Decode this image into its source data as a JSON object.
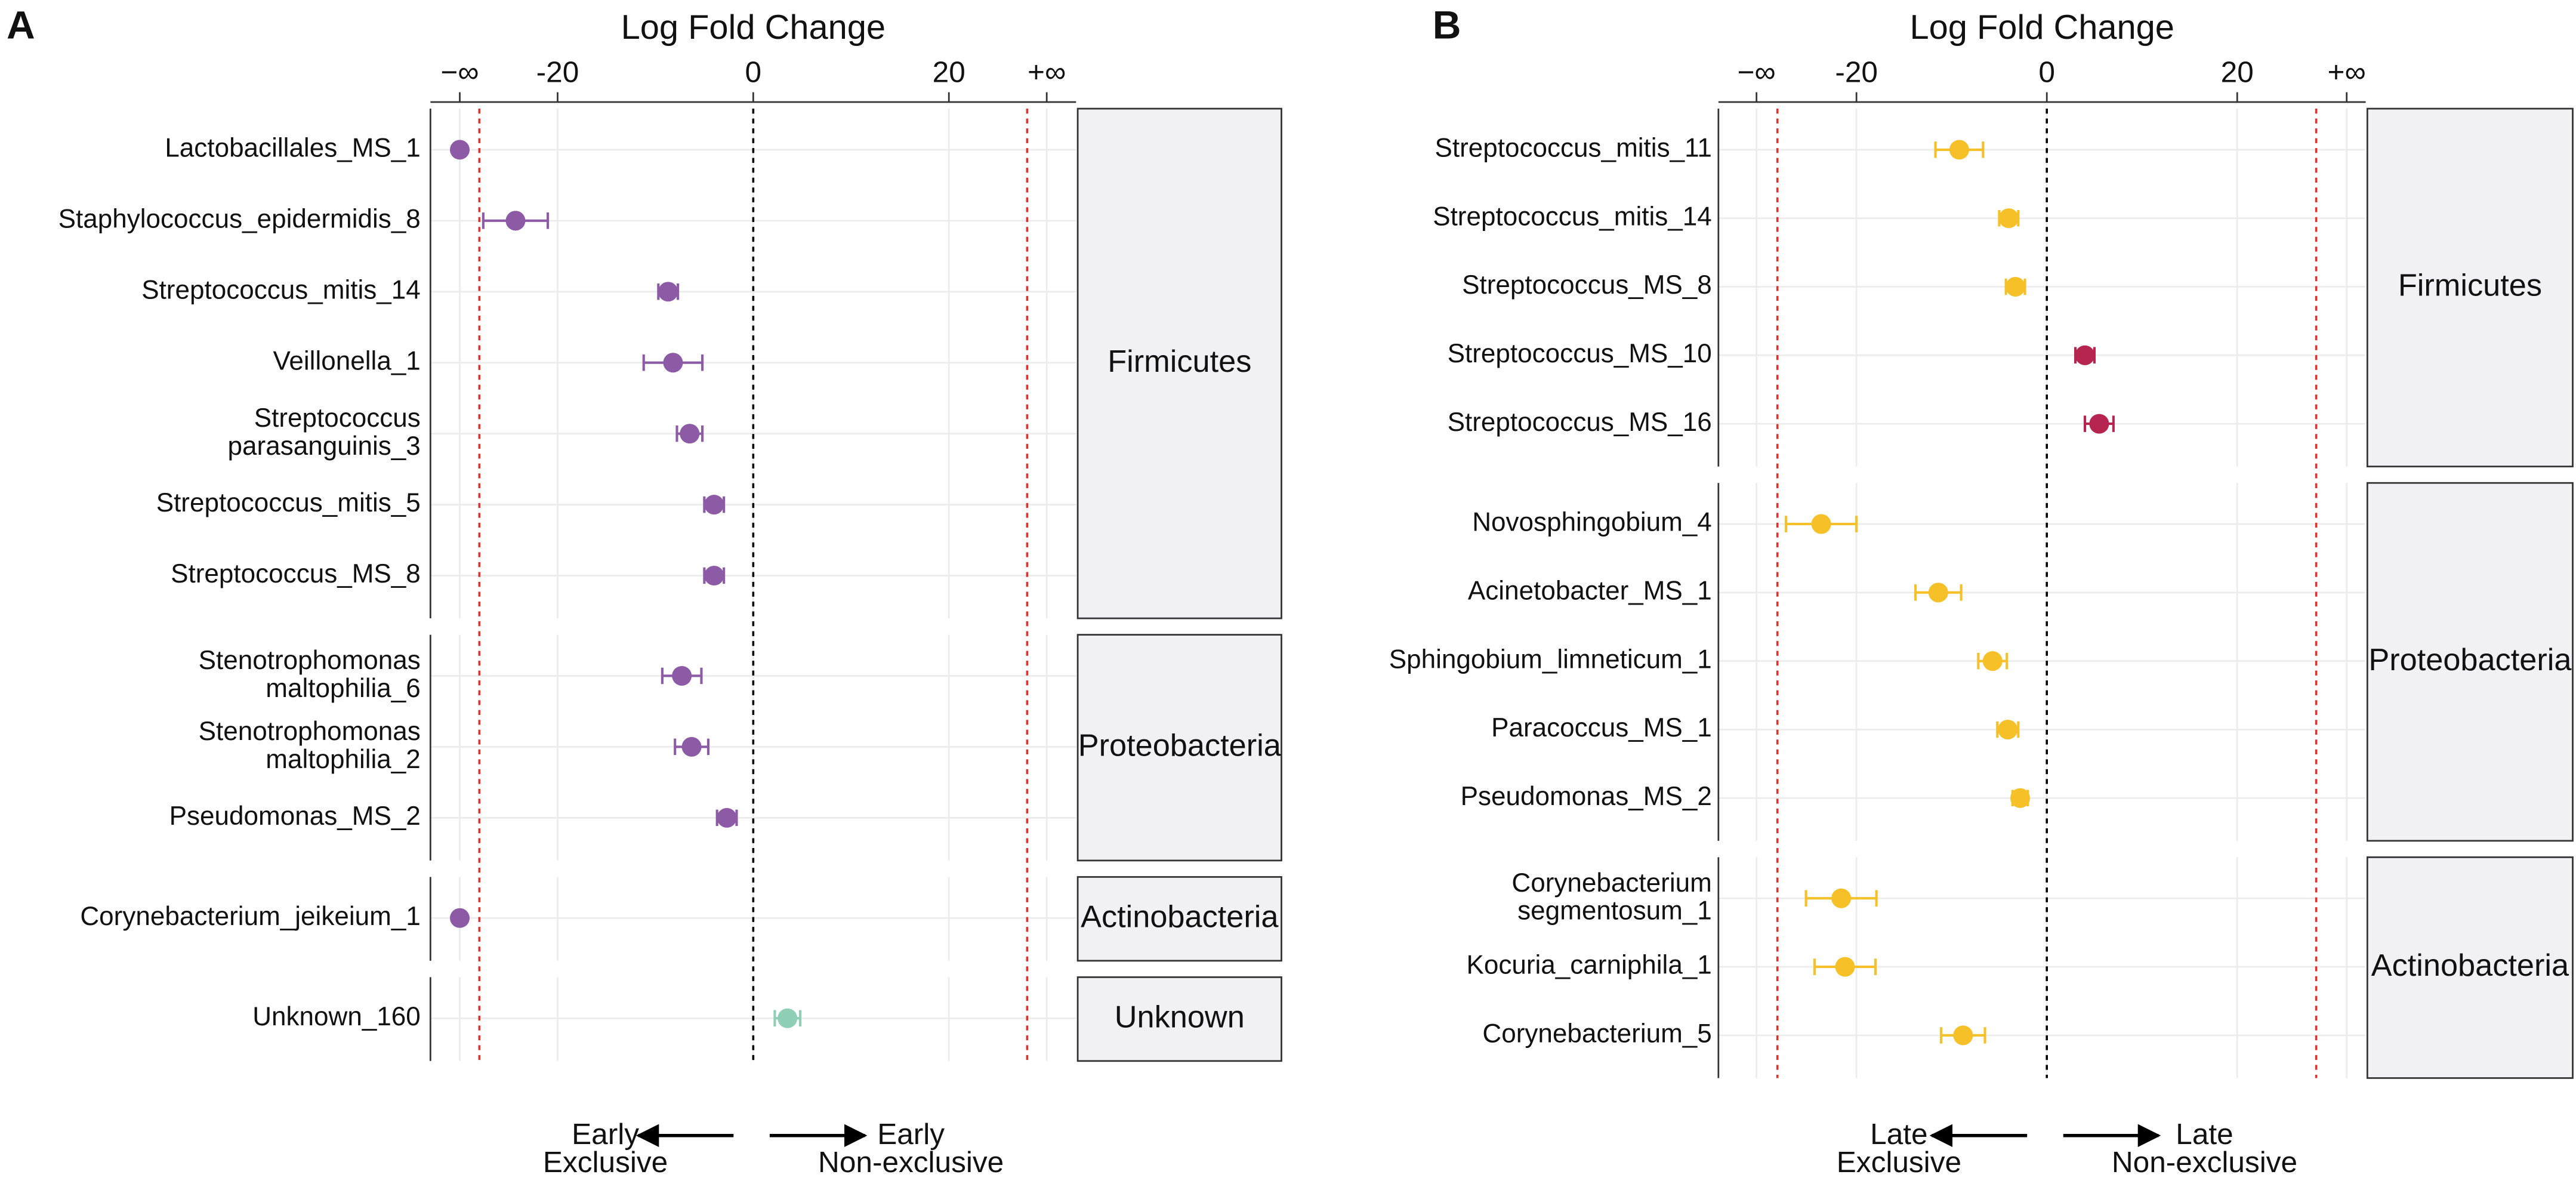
{
  "chart_data": [
    {
      "type": "dotplot",
      "panel_label": "A",
      "x_label": "Log Fold Change",
      "xlim": [
        -33,
        33
      ],
      "xticks": [
        {
          "value": -30,
          "label": "−∞"
        },
        -20,
        0,
        20,
        {
          "value": 30,
          "label": "+∞"
        }
      ],
      "grid": true,
      "ref_lines": [
        {
          "value": -28,
          "color": "#e0312f"
        },
        {
          "value": 0,
          "color": "#000000"
        },
        {
          "value": 28,
          "color": "#e0312f"
        }
      ],
      "groups": [
        {
          "name": "Firmicutes",
          "categories": [
            "Lactobacillales_MS_1",
            "Staphylococcus_epidermidis_8",
            "Streptococcus_mitis_14",
            "Veillonella_1",
            "Streptococcus\nparasanguinis_3",
            "Streptococcus_mitis_5",
            "Streptococcus_MS_8"
          ],
          "values": [
            -30,
            -24.3,
            -8.7,
            -8.2,
            -6.5,
            -4,
            -4
          ],
          "errors": [
            null,
            3.3,
            1,
            3,
            1.3,
            1,
            1
          ],
          "colors": [
            "#8d5ba6",
            "#8d5ba6",
            "#8d5ba6",
            "#8d5ba6",
            "#8d5ba6",
            "#8d5ba6",
            "#8d5ba6"
          ]
        },
        {
          "name": "Proteobacteria",
          "categories": [
            "Stenotrophomonas\nmaltophilia_6",
            "Stenotrophomonas\nmaltophilia_2",
            "Pseudomonas_MS_2"
          ],
          "values": [
            -7.3,
            -6.3,
            -2.7
          ],
          "errors": [
            2,
            1.7,
            1
          ],
          "colors": [
            "#8d5ba6",
            "#8d5ba6",
            "#8d5ba6"
          ]
        },
        {
          "name": "Actinobacteria",
          "categories": [
            "Corynebacterium_jeikeium_1"
          ],
          "values": [
            -30
          ],
          "errors": [
            null
          ],
          "colors": [
            "#8d5ba6"
          ]
        },
        {
          "name": "Unknown",
          "categories": [
            "Unknown_160"
          ],
          "values": [
            3.5
          ],
          "errors": [
            1.3
          ],
          "colors": [
            "#8fcfb6"
          ]
        }
      ],
      "arrow_labels": [
        "Early\nExclusive",
        "Early\nNon-exclusive"
      ]
    },
    {
      "type": "dotplot",
      "panel_label": "B",
      "x_label": "Log Fold Change",
      "xlim": [
        -34.5,
        33.5
      ],
      "xticks": [
        {
          "value": -30.5,
          "label": "−∞"
        },
        -20,
        0,
        20,
        {
          "value": 31.5,
          "label": "+∞"
        }
      ],
      "grid": true,
      "ref_lines": [
        {
          "value": -28.3,
          "color": "#e0312f"
        },
        {
          "value": 0,
          "color": "#000000"
        },
        {
          "value": 28.3,
          "color": "#e0312f"
        }
      ],
      "groups": [
        {
          "name": "Firmicutes",
          "categories": [
            "Streptococcus_mitis_11",
            "Streptococcus_mitis_14",
            "Streptococcus_MS_8",
            "Streptococcus_MS_10",
            "Streptococcus_MS_16"
          ],
          "values": [
            -9.2,
            -4,
            -3.3,
            4,
            5.5
          ],
          "errors": [
            2.5,
            1,
            1,
            1,
            1.5
          ],
          "colors": [
            "#f6c128",
            "#f6c128",
            "#f6c128",
            "#b5254f",
            "#b5254f"
          ]
        },
        {
          "name": "Proteobacteria",
          "categories": [
            "Novosphingobium_4",
            "Acinetobacter_MS_1",
            "Sphingobium_limneticum_1",
            "Paracoccus_MS_1",
            "Pseudomonas_MS_2"
          ],
          "values": [
            -23.7,
            -11.4,
            -5.7,
            -4.1,
            -2.8
          ],
          "errors": [
            3.7,
            2.4,
            1.5,
            1.1,
            0.8
          ],
          "colors": [
            "#f6c128",
            "#f6c128",
            "#f6c128",
            "#f6c128",
            "#f6c128"
          ]
        },
        {
          "name": "Actinobacteria",
          "categories": [
            "Corynebacterium\nsegmentosum_1",
            "Kocuria_carniphila_1",
            "Corynebacterium_5"
          ],
          "values": [
            -21.6,
            -21.2,
            -8.8
          ],
          "errors": [
            3.7,
            3.2,
            2.3
          ],
          "colors": [
            "#f6c128",
            "#f6c128",
            "#f6c128"
          ]
        }
      ],
      "arrow_labels": [
        "Late\nExclusive",
        "Late\nNon-exclusive"
      ]
    }
  ]
}
